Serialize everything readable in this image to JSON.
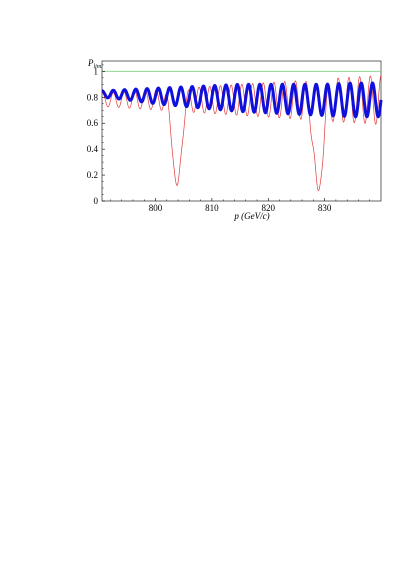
{
  "chart_data": {
    "type": "line",
    "title": "",
    "xlabel": "p (GeV/c)",
    "ylabel": "P_lim.",
    "xlim": [
      790.5,
      840
    ],
    "ylim": [
      0,
      1.08
    ],
    "x_ticks": [
      800,
      810,
      820,
      830
    ],
    "y_ticks": [
      0,
      0.2,
      0.4,
      0.6,
      0.8,
      1
    ],
    "x_tick_labels": [
      "800",
      "810",
      "820",
      "830"
    ],
    "y_tick_labels": [
      "0",
      "0.2",
      "0.4",
      "0.6",
      "0.8",
      "1"
    ],
    "grid": false,
    "legend": "none",
    "reference_line": {
      "y": 1.0,
      "color": "#8fd88f"
    },
    "series": [
      {
        "color": "#e23b3b",
        "style": "thin",
        "oscillation_period": 1.9,
        "baseline": 0.78,
        "amplitude_range": [
          0.05,
          0.19
        ],
        "dips": [
          {
            "x": 803.8,
            "min": 0.12
          },
          {
            "x": 828.9,
            "min": 0.08
          }
        ]
      },
      {
        "color": "#1010dd",
        "style": "thick",
        "oscillation_period": 2.0,
        "center": 0.79,
        "amplitude_range": [
          0.02,
          0.12
        ],
        "x": [
          790.5,
          795,
          800,
          805,
          810,
          815,
          820,
          825,
          830,
          835,
          840
        ],
        "y_max": [
          0.85,
          0.86,
          0.87,
          0.88,
          0.89,
          0.9,
          0.9,
          0.9,
          0.9,
          0.91,
          0.91
        ],
        "y_min": [
          0.8,
          0.78,
          0.75,
          0.73,
          0.71,
          0.69,
          0.68,
          0.67,
          0.66,
          0.65,
          0.65
        ]
      }
    ]
  }
}
